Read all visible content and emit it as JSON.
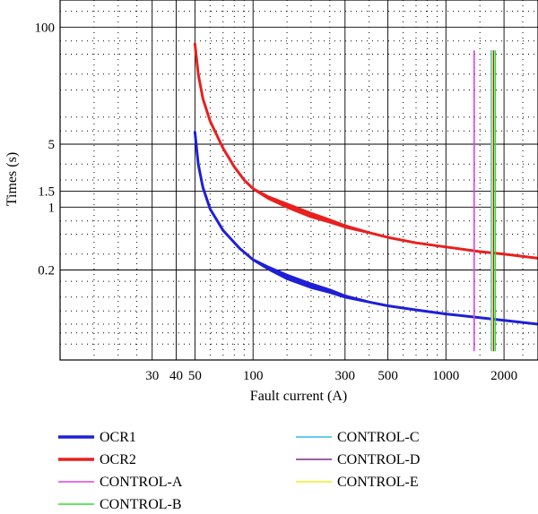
{
  "chart_data": {
    "type": "line",
    "title": "",
    "xlabel": "Fault current (A)",
    "ylabel": "Times (s)",
    "x_scale": "log",
    "y_scale": "log",
    "xlim": [
      10,
      3000
    ],
    "ylim": [
      0.02,
      200
    ],
    "grid": true,
    "legend_position": "bottom, two columns",
    "x_ticks": [
      {
        "value": 30,
        "label": "30"
      },
      {
        "value": 40,
        "label": "40"
      },
      {
        "value": 50,
        "label": "50"
      },
      {
        "value": 100,
        "label": "100"
      },
      {
        "value": 300,
        "label": "300"
      },
      {
        "value": 500,
        "label": "500"
      },
      {
        "value": 1000,
        "label": "1000"
      },
      {
        "value": 2000,
        "label": "2000"
      }
    ],
    "y_ticks": [
      {
        "value": 100,
        "label": "100"
      },
      {
        "value": 5,
        "label": "5"
      },
      {
        "value": 1.5,
        "label": "1.5"
      },
      {
        "value": 1,
        "label": "1"
      },
      {
        "value": 0.2,
        "label": "0.2"
      }
    ],
    "x_minor_grid": [
      15,
      20,
      25,
      60,
      70,
      80,
      90,
      150,
      200,
      250,
      400,
      600,
      700,
      800,
      900,
      1500,
      2500
    ],
    "y_minor_grid": [
      0.03,
      0.04,
      0.05,
      0.07,
      0.1,
      0.15,
      0.3,
      0.5,
      0.7,
      2,
      3,
      7,
      10,
      20,
      30,
      50,
      70,
      150
    ],
    "series": [
      {
        "name": "OCR1",
        "color": "#1f1fd6",
        "kind": "band",
        "upper": [
          [
            50,
            6.8
          ],
          [
            52,
            3.0
          ],
          [
            55,
            1.65
          ],
          [
            60,
            0.95
          ],
          [
            70,
            0.55
          ],
          [
            85,
            0.35
          ],
          [
            100,
            0.26
          ],
          [
            120,
            0.215
          ],
          [
            150,
            0.175
          ],
          [
            200,
            0.14
          ],
          [
            250,
            0.12
          ],
          [
            300,
            0.103
          ],
          [
            400,
            0.088
          ],
          [
            500,
            0.08
          ],
          [
            700,
            0.072
          ],
          [
            1000,
            0.065
          ],
          [
            1500,
            0.059
          ],
          [
            2000,
            0.055
          ],
          [
            3000,
            0.05
          ]
        ],
        "lower": [
          [
            50,
            6.8
          ],
          [
            52,
            3.0
          ],
          [
            55,
            1.65
          ],
          [
            60,
            0.95
          ],
          [
            70,
            0.55
          ],
          [
            85,
            0.35
          ],
          [
            100,
            0.26
          ],
          [
            120,
            0.205
          ],
          [
            150,
            0.16
          ],
          [
            200,
            0.128
          ],
          [
            250,
            0.113
          ],
          [
            300,
            0.1
          ],
          [
            400,
            0.088
          ],
          [
            500,
            0.08
          ],
          [
            700,
            0.072
          ],
          [
            1000,
            0.065
          ],
          [
            1500,
            0.059
          ],
          [
            2000,
            0.055
          ],
          [
            3000,
            0.05
          ]
        ]
      },
      {
        "name": "OCR2",
        "color": "#e8201e",
        "kind": "band",
        "upper": [
          [
            50,
            65
          ],
          [
            52,
            30
          ],
          [
            55,
            16
          ],
          [
            60,
            9
          ],
          [
            70,
            4.5
          ],
          [
            80,
            2.8
          ],
          [
            90,
            2.0
          ],
          [
            100,
            1.6
          ],
          [
            120,
            1.3
          ],
          [
            150,
            1.08
          ],
          [
            200,
            0.85
          ],
          [
            250,
            0.72
          ],
          [
            300,
            0.62
          ],
          [
            400,
            0.52
          ],
          [
            500,
            0.46
          ],
          [
            700,
            0.4
          ],
          [
            1000,
            0.36
          ],
          [
            1500,
            0.32
          ],
          [
            2000,
            0.3
          ],
          [
            3000,
            0.27
          ]
        ],
        "lower": [
          [
            50,
            65
          ],
          [
            52,
            30
          ],
          [
            55,
            16
          ],
          [
            60,
            9
          ],
          [
            70,
            4.5
          ],
          [
            80,
            2.8
          ],
          [
            90,
            2.0
          ],
          [
            100,
            1.6
          ],
          [
            120,
            1.25
          ],
          [
            150,
            1.0
          ],
          [
            200,
            0.78
          ],
          [
            250,
            0.68
          ],
          [
            300,
            0.6
          ],
          [
            400,
            0.52
          ],
          [
            500,
            0.46
          ],
          [
            700,
            0.4
          ],
          [
            1000,
            0.36
          ],
          [
            1500,
            0.32
          ],
          [
            2000,
            0.3
          ],
          [
            3000,
            0.27
          ]
        ]
      },
      {
        "name": "CONTROL-A",
        "color": "#e040e0",
        "kind": "vline",
        "x": 1400,
        "ymin": 0.025,
        "ymax": 55
      },
      {
        "name": "CONTROL-B",
        "color": "#33dd33",
        "kind": "vline",
        "x": 1800,
        "ymin": 0.025,
        "ymax": 55
      },
      {
        "name": "CONTROL-C",
        "color": "#33bbee",
        "kind": "vline",
        "x": 1720,
        "ymin": 0.025,
        "ymax": 55
      },
      {
        "name": "CONTROL-D",
        "color": "#7a2a8a",
        "kind": "vline",
        "x": 1760,
        "ymin": 0.025,
        "ymax": 55
      },
      {
        "name": "CONTROL-E",
        "color": "#eeee22",
        "kind": "vline",
        "x": 1740,
        "ymin": 0.025,
        "ymax": 55
      }
    ],
    "legend_columns": [
      [
        "OCR1",
        "OCR2",
        "CONTROL-A",
        "CONTROL-B"
      ],
      [
        "CONTROL-C",
        "CONTROL-D",
        "CONTROL-E"
      ]
    ]
  }
}
